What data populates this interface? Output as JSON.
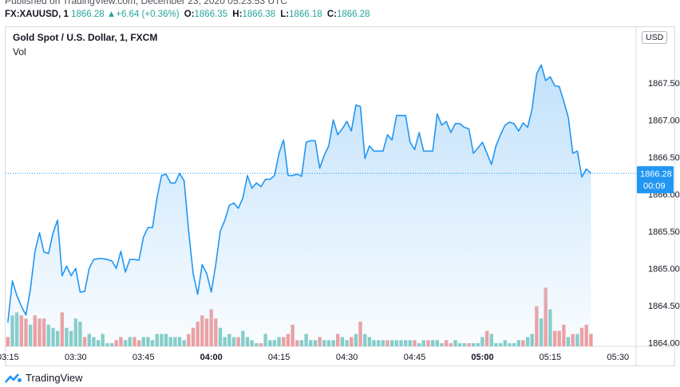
{
  "published": "Published on TradingView.com, December 23, 2020 05:23:53 UTC",
  "quote": {
    "symbol": "FX:XAUUSD, 1",
    "last": "1866.28",
    "change": "+6.64 (+0.36%)",
    "open_label": "O:",
    "open": "1866.35",
    "high_label": "H:",
    "high": "1866.38",
    "low_label": "L:",
    "low": "1866.18",
    "close_label": "C:",
    "close": "1866.28"
  },
  "legend": {
    "title": "Gold Spot / U.S. Dollar, 1, FXCM",
    "vol": "Vol"
  },
  "currency": "USD",
  "last_price_tag": {
    "price": "1866.28",
    "countdown": "00:09"
  },
  "footer": {
    "brand": "TradingView"
  },
  "colors": {
    "line": "#2196f3",
    "fill_top": "#bbdefb",
    "up_vol": "#80cbc4",
    "down_vol": "#ef9a9a",
    "quote_value": "#26a69a",
    "tag_bg": "#2196f3"
  },
  "chart_data": {
    "type": "area",
    "title": "Gold Spot / U.S. Dollar, 1, FXCM",
    "x_ticks": [
      "03:15",
      "03:30",
      "03:45",
      "04:00",
      "04:15",
      "04:30",
      "04:45",
      "05:00",
      "05:15",
      "05:30"
    ],
    "x_tick_minutes": [
      195,
      210,
      225,
      240,
      255,
      270,
      285,
      300,
      315,
      330
    ],
    "y_ticks": [
      "1864.00",
      "1864.50",
      "1865.00",
      "1865.50",
      "1866.00",
      "1866.50",
      "1867.00",
      "1867.50"
    ],
    "ylim": [
      1863.95,
      1868.25
    ],
    "xlim": [
      194.5,
      334
    ],
    "grid": false,
    "price": [
      [
        195,
        1864.27
      ],
      [
        196,
        1864.83
      ],
      [
        197,
        1864.63
      ],
      [
        198,
        1864.49
      ],
      [
        199,
        1864.37
      ],
      [
        200,
        1864.72
      ],
      [
        201,
        1865.23
      ],
      [
        202,
        1865.48
      ],
      [
        203,
        1865.22
      ],
      [
        204,
        1865.2
      ],
      [
        205,
        1865.48
      ],
      [
        206,
        1865.65
      ],
      [
        207,
        1864.9
      ],
      [
        208,
        1865.03
      ],
      [
        209,
        1864.9
      ],
      [
        210,
        1865.0
      ],
      [
        211,
        1864.68
      ],
      [
        212,
        1864.69
      ],
      [
        213,
        1865.0
      ],
      [
        214,
        1865.12
      ],
      [
        215,
        1865.13
      ],
      [
        216,
        1865.13
      ],
      [
        217,
        1865.12
      ],
      [
        218,
        1865.1
      ],
      [
        219,
        1865.0
      ],
      [
        220,
        1865.23
      ],
      [
        221,
        1864.95
      ],
      [
        222,
        1865.12
      ],
      [
        223,
        1865.12
      ],
      [
        224,
        1865.11
      ],
      [
        225,
        1865.42
      ],
      [
        226,
        1865.55
      ],
      [
        227,
        1865.55
      ],
      [
        228,
        1865.95
      ],
      [
        229,
        1866.25
      ],
      [
        230,
        1866.27
      ],
      [
        231,
        1866.15
      ],
      [
        232,
        1866.15
      ],
      [
        233,
        1866.28
      ],
      [
        234,
        1866.18
      ],
      [
        235,
        1865.5
      ],
      [
        236,
        1864.93
      ],
      [
        237,
        1864.65
      ],
      [
        238,
        1865.05
      ],
      [
        239,
        1864.93
      ],
      [
        240,
        1864.68
      ],
      [
        241,
        1865.05
      ],
      [
        242,
        1865.5
      ],
      [
        243,
        1865.65
      ],
      [
        244,
        1865.85
      ],
      [
        245,
        1865.88
      ],
      [
        246,
        1865.81
      ],
      [
        247,
        1865.95
      ],
      [
        248,
        1866.25
      ],
      [
        249,
        1866.08
      ],
      [
        250,
        1866.15
      ],
      [
        251,
        1866.1
      ],
      [
        252,
        1866.2
      ],
      [
        253,
        1866.2
      ],
      [
        254,
        1866.25
      ],
      [
        255,
        1866.55
      ],
      [
        256,
        1866.73
      ],
      [
        257,
        1866.25
      ],
      [
        258,
        1866.25
      ],
      [
        259,
        1866.27
      ],
      [
        260,
        1866.24
      ],
      [
        261,
        1866.7
      ],
      [
        262,
        1866.72
      ],
      [
        263,
        1866.72
      ],
      [
        264,
        1866.35
      ],
      [
        265,
        1866.52
      ],
      [
        266,
        1866.65
      ],
      [
        267,
        1867.0
      ],
      [
        268,
        1866.8
      ],
      [
        269,
        1866.88
      ],
      [
        270,
        1866.98
      ],
      [
        271,
        1866.85
      ],
      [
        272,
        1867.2
      ],
      [
        273,
        1867.18
      ],
      [
        274,
        1866.48
      ],
      [
        275,
        1866.65
      ],
      [
        276,
        1866.58
      ],
      [
        277,
        1866.58
      ],
      [
        278,
        1866.58
      ],
      [
        279,
        1866.8
      ],
      [
        280,
        1866.73
      ],
      [
        281,
        1867.06
      ],
      [
        282,
        1867.06
      ],
      [
        283,
        1867.06
      ],
      [
        284,
        1866.7
      ],
      [
        285,
        1866.6
      ],
      [
        286,
        1866.83
      ],
      [
        287,
        1866.58
      ],
      [
        288,
        1866.58
      ],
      [
        289,
        1866.58
      ],
      [
        290,
        1867.08
      ],
      [
        291,
        1866.93
      ],
      [
        292,
        1866.98
      ],
      [
        293,
        1866.83
      ],
      [
        294,
        1866.95
      ],
      [
        295,
        1866.95
      ],
      [
        296,
        1866.9
      ],
      [
        297,
        1866.88
      ],
      [
        298,
        1866.55
      ],
      [
        299,
        1866.62
      ],
      [
        300,
        1866.7
      ],
      [
        301,
        1866.55
      ],
      [
        302,
        1866.4
      ],
      [
        303,
        1866.65
      ],
      [
        304,
        1866.8
      ],
      [
        305,
        1866.93
      ],
      [
        306,
        1866.97
      ],
      [
        307,
        1866.95
      ],
      [
        308,
        1866.85
      ],
      [
        309,
        1866.96
      ],
      [
        310,
        1866.9
      ],
      [
        311,
        1867.15
      ],
      [
        312,
        1867.62
      ],
      [
        313,
        1867.74
      ],
      [
        314,
        1867.53
      ],
      [
        315,
        1867.58
      ],
      [
        316,
        1867.46
      ],
      [
        317,
        1867.45
      ],
      [
        318,
        1867.25
      ],
      [
        319,
        1867.03
      ],
      [
        320,
        1866.55
      ],
      [
        321,
        1866.58
      ],
      [
        322,
        1866.23
      ],
      [
        323,
        1866.34
      ],
      [
        324,
        1866.28
      ]
    ],
    "volume_ylim": [
      0,
      30
    ],
    "volume": [
      [
        195,
        3,
        "down"
      ],
      [
        196,
        10,
        "up"
      ],
      [
        197,
        11,
        "up"
      ],
      [
        198,
        10,
        "down"
      ],
      [
        199,
        9,
        "down"
      ],
      [
        200,
        7,
        "up"
      ],
      [
        201,
        10,
        "down"
      ],
      [
        202,
        9,
        "down"
      ],
      [
        203,
        9,
        "down"
      ],
      [
        204,
        7,
        "up"
      ],
      [
        205,
        6,
        "up"
      ],
      [
        206,
        5,
        "up"
      ],
      [
        207,
        11,
        "down"
      ],
      [
        208,
        6,
        "up"
      ],
      [
        209,
        5,
        "up"
      ],
      [
        210,
        9,
        "up"
      ],
      [
        211,
        8,
        "up"
      ],
      [
        212,
        3,
        "down"
      ],
      [
        213,
        4,
        "up"
      ],
      [
        214,
        3,
        "up"
      ],
      [
        215,
        2,
        "up"
      ],
      [
        216,
        4,
        "up"
      ],
      [
        217,
        1,
        "up"
      ],
      [
        218,
        1,
        "up"
      ],
      [
        219,
        2,
        "down"
      ],
      [
        220,
        3,
        "down"
      ],
      [
        221,
        2,
        "up"
      ],
      [
        222,
        3,
        "up"
      ],
      [
        223,
        3,
        "down"
      ],
      [
        224,
        2,
        "down"
      ],
      [
        225,
        3,
        "up"
      ],
      [
        226,
        3,
        "up"
      ],
      [
        227,
        2,
        "up"
      ],
      [
        228,
        4,
        "up"
      ],
      [
        229,
        4,
        "up"
      ],
      [
        230,
        4,
        "up"
      ],
      [
        231,
        3,
        "up"
      ],
      [
        232,
        3,
        "up"
      ],
      [
        233,
        3,
        "up"
      ],
      [
        234,
        2,
        "up"
      ],
      [
        235,
        4,
        "down"
      ],
      [
        236,
        6,
        "down"
      ],
      [
        237,
        8,
        "down"
      ],
      [
        238,
        10,
        "down"
      ],
      [
        239,
        9,
        "down"
      ],
      [
        240,
        12,
        "down"
      ],
      [
        241,
        9,
        "down"
      ],
      [
        242,
        6,
        "up"
      ],
      [
        243,
        3,
        "up"
      ],
      [
        244,
        4,
        "up"
      ],
      [
        245,
        3,
        "up"
      ],
      [
        246,
        3,
        "down"
      ],
      [
        247,
        5,
        "up"
      ],
      [
        248,
        3,
        "up"
      ],
      [
        249,
        2,
        "up"
      ],
      [
        250,
        1,
        "up"
      ],
      [
        251,
        1,
        "down"
      ],
      [
        252,
        4,
        "up"
      ],
      [
        253,
        2,
        "up"
      ],
      [
        254,
        2,
        "up"
      ],
      [
        255,
        3,
        "up"
      ],
      [
        256,
        3,
        "down"
      ],
      [
        257,
        4,
        "down"
      ],
      [
        258,
        7,
        "down"
      ],
      [
        259,
        2,
        "down"
      ],
      [
        260,
        2,
        "up"
      ],
      [
        261,
        4,
        "up"
      ],
      [
        262,
        2,
        "up"
      ],
      [
        263,
        2,
        "up"
      ],
      [
        264,
        3,
        "down"
      ],
      [
        265,
        2,
        "up"
      ],
      [
        266,
        2,
        "up"
      ],
      [
        267,
        2,
        "up"
      ],
      [
        268,
        4,
        "down"
      ],
      [
        269,
        3,
        "up"
      ],
      [
        270,
        2,
        "up"
      ],
      [
        271,
        3,
        "down"
      ],
      [
        272,
        4,
        "up"
      ],
      [
        273,
        8,
        "down"
      ],
      [
        274,
        4,
        "up"
      ],
      [
        275,
        3,
        "up"
      ],
      [
        276,
        2,
        "up"
      ],
      [
        277,
        2,
        "up"
      ],
      [
        278,
        2,
        "up"
      ],
      [
        279,
        2,
        "down"
      ],
      [
        280,
        2,
        "up"
      ],
      [
        281,
        2,
        "up"
      ],
      [
        282,
        2,
        "up"
      ],
      [
        283,
        2,
        "up"
      ],
      [
        284,
        2,
        "up"
      ],
      [
        285,
        2,
        "down"
      ],
      [
        286,
        1,
        "up"
      ],
      [
        287,
        2,
        "up"
      ],
      [
        288,
        2,
        "down"
      ],
      [
        289,
        2,
        "up"
      ],
      [
        290,
        2,
        "up"
      ],
      [
        291,
        1,
        "up"
      ],
      [
        292,
        2,
        "down"
      ],
      [
        293,
        1,
        "down"
      ],
      [
        294,
        2,
        "up"
      ],
      [
        295,
        1,
        "up"
      ],
      [
        296,
        1,
        "up"
      ],
      [
        297,
        1,
        "down"
      ],
      [
        298,
        1,
        "up"
      ],
      [
        299,
        1,
        "up"
      ],
      [
        300,
        3,
        "up"
      ],
      [
        301,
        5,
        "down"
      ],
      [
        302,
        4,
        "up"
      ],
      [
        303,
        1,
        "up"
      ],
      [
        304,
        1,
        "up"
      ],
      [
        305,
        2,
        "up"
      ],
      [
        306,
        1,
        "up"
      ],
      [
        307,
        1,
        "up"
      ],
      [
        308,
        2,
        "up"
      ],
      [
        309,
        2,
        "down"
      ],
      [
        310,
        3,
        "up"
      ],
      [
        311,
        4,
        "up"
      ],
      [
        312,
        13,
        "down"
      ],
      [
        313,
        9,
        "up"
      ],
      [
        314,
        19,
        "down"
      ],
      [
        315,
        12,
        "up"
      ],
      [
        316,
        5,
        "down"
      ],
      [
        317,
        5,
        "down"
      ],
      [
        318,
        7,
        "down"
      ],
      [
        319,
        3,
        "up"
      ],
      [
        320,
        4,
        "down"
      ],
      [
        321,
        4,
        "up"
      ],
      [
        322,
        6,
        "down"
      ],
      [
        323,
        7,
        "down"
      ],
      [
        324,
        4,
        "down"
      ]
    ]
  }
}
